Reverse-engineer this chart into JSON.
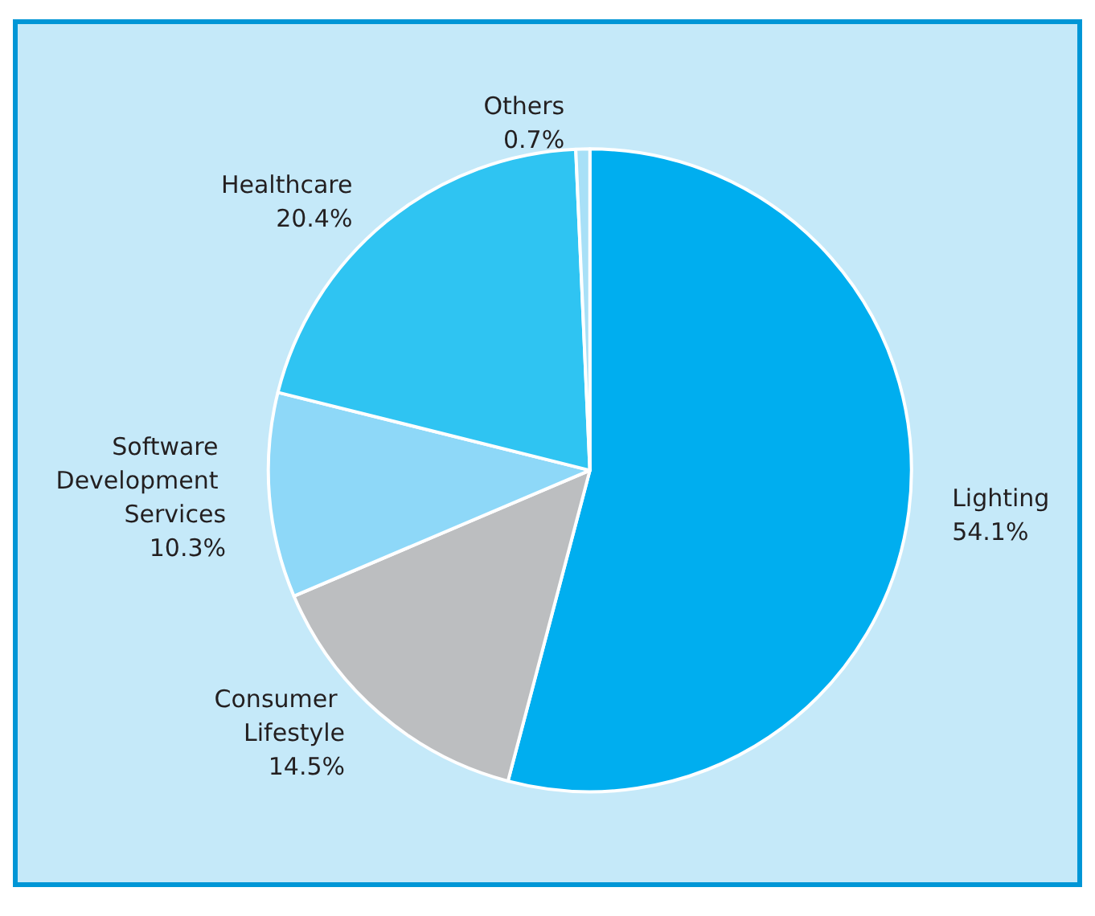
{
  "chart_data": {
    "type": "pie",
    "categories": [
      "Lighting",
      "Consumer Lifestyle",
      "Software Development Services",
      "Healthcare",
      "Others"
    ],
    "values": [
      54.1,
      14.5,
      10.3,
      20.4,
      0.7
    ],
    "colors": [
      "#00aeef",
      "#bcbec0",
      "#8ed8f8",
      "#2fc4f2",
      "#a8e0f7"
    ],
    "value_labels": [
      "54.1%",
      "14.5%",
      "10.3%",
      "20.4%",
      "0.7%"
    ],
    "legend": false
  }
}
